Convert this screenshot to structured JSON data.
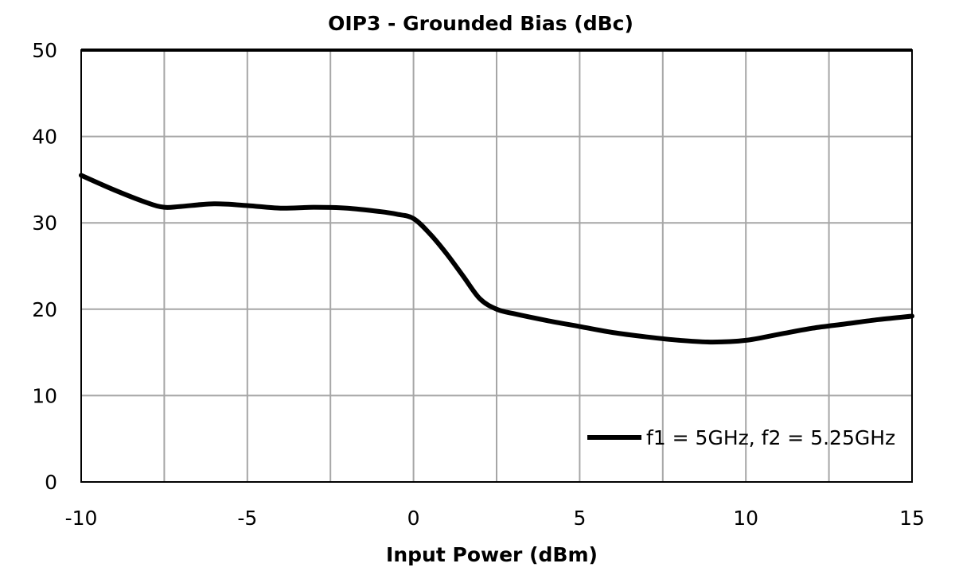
{
  "chart_data": {
    "type": "line",
    "title": "OIP3 - Grounded Bias (dBc)",
    "xlabel": "Input Power (dBm)",
    "ylabel": "",
    "xlim": [
      -10,
      15
    ],
    "ylim": [
      0,
      50
    ],
    "xticks": [
      -10,
      -5,
      0,
      5,
      10,
      15
    ],
    "yticks": [
      0,
      10,
      20,
      30,
      40,
      50
    ],
    "x_gridlines": [
      -10,
      -7.5,
      -5,
      -2.5,
      0,
      2.5,
      5,
      7.5,
      10,
      12.5,
      15
    ],
    "y_gridlines": [
      0,
      10,
      20,
      30,
      40,
      50
    ],
    "grid": true,
    "legend": "bottom-right",
    "series": [
      {
        "name": "f1 = 5GHz, f2 = 5.25GHz",
        "color": "#000000",
        "x": [
          -10,
          -9,
          -8,
          -7.5,
          -7,
          -6,
          -5,
          -4,
          -3,
          -2,
          -1,
          -0.5,
          0,
          0.5,
          1,
          1.5,
          2,
          2.5,
          3,
          4,
          5,
          6,
          7,
          8,
          9,
          10,
          11,
          12,
          13,
          14,
          15
        ],
        "y": [
          35.5,
          33.8,
          32.3,
          31.8,
          31.9,
          32.2,
          32.0,
          31.7,
          31.8,
          31.7,
          31.3,
          31.0,
          30.5,
          28.7,
          26.4,
          23.8,
          21.2,
          20.0,
          19.5,
          18.7,
          18.0,
          17.3,
          16.8,
          16.4,
          16.2,
          16.4,
          17.1,
          17.8,
          18.3,
          18.8,
          19.2
        ]
      }
    ]
  }
}
